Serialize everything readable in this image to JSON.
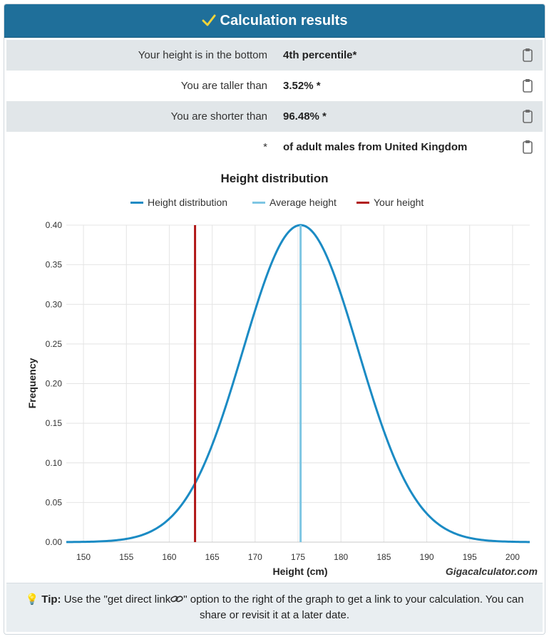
{
  "header": {
    "title": "Calculation results",
    "icon": "check-icon"
  },
  "results": [
    {
      "label": "Your height is in the bottom",
      "value": "4th percentile*"
    },
    {
      "label": "You are taller than",
      "value": "3.52% *"
    },
    {
      "label": "You are shorter than",
      "value": "96.48% *"
    },
    {
      "label": "*",
      "value": "of adult males from United Kingdom"
    }
  ],
  "chart_data": {
    "type": "line",
    "title": "Height distribution",
    "xlabel": "Height (cm)",
    "ylabel": "Frequency",
    "watermark": "Gigacalculator.com",
    "xlim": [
      148,
      202
    ],
    "ylim": [
      0,
      0.4
    ],
    "x_ticks": [
      150,
      155,
      160,
      165,
      170,
      175,
      180,
      185,
      190,
      195,
      200
    ],
    "y_ticks": [
      0.0,
      0.05,
      0.1,
      0.15,
      0.2,
      0.25,
      0.3,
      0.35,
      0.4
    ],
    "grid": true,
    "legend_position": "top",
    "series": [
      {
        "name": "Height distribution",
        "kind": "normal-curve",
        "mean": 175.3,
        "peak": 0.4,
        "sd_cm": 6.7,
        "color": "#1b8bc4"
      },
      {
        "name": "Average height",
        "kind": "vertical-line",
        "x": 175.3,
        "color": "#7ec6e3"
      },
      {
        "name": "Your height",
        "kind": "vertical-line",
        "x": 163,
        "color": "#b11818"
      }
    ]
  },
  "tip": {
    "prefix": "Tip:",
    "before": "Use the \"get direct link",
    "after": "\" option to the right of the graph to get a link to your calculation. You can share or revisit it at a later date.",
    "icon": "lightbulb-icon",
    "link_icon": "link-icon"
  }
}
